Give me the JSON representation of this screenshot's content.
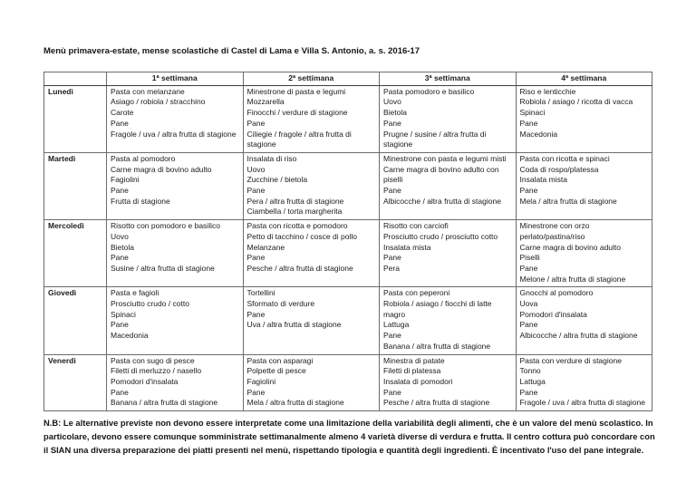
{
  "title": "Menù primavera-estate, mense scolastiche di Castel di Lama e Villa S. Antonio, a. s. 2016-17",
  "table": {
    "corner_label": "",
    "columns": [
      "1ª settimana",
      "2ª settimana",
      "3ª settimana",
      "4ª settimana"
    ],
    "rows": [
      {
        "day": "Lunedì",
        "weeks": [
          [
            "Pasta con melanzane",
            "Asiago / robiola / stracchino",
            "Carote",
            "Pane",
            "Fragole / uva / altra frutta di stagione"
          ],
          [
            "Minestrone di pasta e legumi",
            "Mozzarella",
            "Finocchi / verdure di stagione",
            "Pane",
            "Ciliegie / fragole / altra frutta di stagione"
          ],
          [
            "Pasta pomodoro e basilico",
            "Uovo",
            "Bietola",
            "Pane",
            "Prugne / susine / altra frutta di stagione"
          ],
          [
            "Riso e lenticchie",
            "Robiola / asiago / ricotta di vacca",
            "Spinaci",
            "Pane",
            "Macedonia"
          ]
        ]
      },
      {
        "day": "Martedì",
        "weeks": [
          [
            "Pasta al pomodoro",
            "Carne magra di bovino adulto",
            "Fagiolini",
            "Pane",
            "Frutta di stagione"
          ],
          [
            "Insalata di riso",
            "Uovo",
            "Zucchine / bietola",
            "Pane",
            "Pera / altra frutta di stagione",
            "Ciambella / torta margherita"
          ],
          [
            "Minestrone con pasta e legumi misti",
            "Carne magra di bovino adulto con piselli",
            "Pane",
            "Albicocche / altra frutta di stagione"
          ],
          [
            "Pasta con ricotta e spinaci",
            "Coda di rospo/platessa",
            "Insalata mista",
            "Pane",
            "Mela / altra frutta di stagione"
          ]
        ]
      },
      {
        "day": "Mercoledì",
        "weeks": [
          [
            "Risotto con pomodoro e basilico",
            "Uovo",
            "Bietola",
            "Pane",
            "Susine / altra frutta di stagione"
          ],
          [
            "Pasta con ricotta e pomodoro",
            "Petto di tacchino / cosce di pollo",
            "Melanzane",
            "Pane",
            "Pesche / altra frutta di stagione"
          ],
          [
            "Risotto con carciofi",
            "Prosciutto crudo / prosciutto cotto",
            "Insalata mista",
            "Pane",
            "Pera"
          ],
          [
            "Minestrone con orzo perlato/pastina/riso",
            "Carne magra di bovino adulto",
            "Piselli",
            "Pane",
            "Melone / altra frutta di stagione"
          ]
        ]
      },
      {
        "day": "Giovedì",
        "weeks": [
          [
            "Pasta e fagioli",
            "Prosciutto crudo / cotto",
            "Spinaci",
            "Pane",
            "Macedonia"
          ],
          [
            "Tortellini",
            "Sformato di verdure",
            "Pane",
            "Uva / altra frutta di stagione"
          ],
          [
            "Pasta con peperoni",
            "Robiola / asiago / fiocchi di latte magro",
            "Lattuga",
            "Pane",
            "Banana / altra frutta di stagione"
          ],
          [
            "Gnocchi al pomodoro",
            "Uova",
            "Pomodori d'insalata",
            "Pane",
            "Albicocche / altra frutta di stagione"
          ]
        ]
      },
      {
        "day": "Venerdì",
        "weeks": [
          [
            "Pasta con sugo di pesce",
            "Filetti di merluzzo / nasello",
            "Pomodori d'insalata",
            "Pane",
            "Banana / altra frutta di stagione"
          ],
          [
            "Pasta con asparagi",
            "Polpette di pesce",
            "Fagiolini",
            "Pane",
            "Mela / altra frutta di stagione"
          ],
          [
            "Minestra di patate",
            "Filetti di platessa",
            "Insalata di pomodori",
            "Pane",
            "Pesche / altra frutta di stagione"
          ],
          [
            "Pasta con verdure di stagione",
            "Tonno",
            "Lattuga",
            "Pane",
            "Fragole / uva / altra frutta di stagione"
          ]
        ]
      }
    ]
  },
  "footer_note": "N.B: Le alternative previste non devono essere interpretate come una limitazione della variabilità degli alimenti, che è un valore del menù scolastico. In particolare, devono essere comunque somministrate settimanalmente almeno 4 varietà diverse di verdura e frutta. Il centro cottura può concordare con il SIAN una diversa preparazione dei piatti presenti nel menù, rispettando tipologia e quantità degli ingredienti. È incentivato l'uso del pane integrale."
}
